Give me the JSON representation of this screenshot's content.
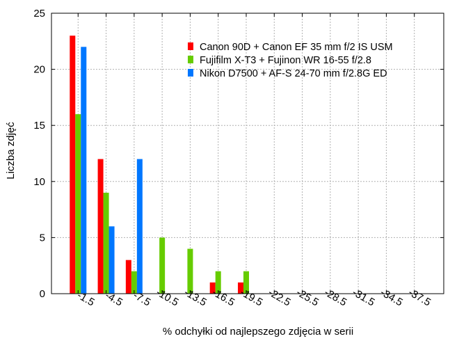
{
  "chart_data": {
    "type": "bar",
    "xlabel": "% odchyłki od najlepszego zdjęcia w serii",
    "ylabel": "Liczba zdjęć",
    "ylim": [
      0,
      25
    ],
    "yticks": [
      0,
      5,
      10,
      15,
      20,
      25
    ],
    "grid": true,
    "legend_position": "top-right",
    "categories": [
      "-1.5",
      "-4.5",
      "-7.5",
      "-10.5",
      "-13.5",
      "-16.5",
      "-19.5",
      "-22.5",
      "-25.5",
      "-28.5",
      "-31.5",
      "-34.5",
      "-37.5"
    ],
    "series": [
      {
        "name": "Canon 90D + Canon EF 35 mm f/2 IS USM",
        "color": "#ff0000",
        "values": [
          23,
          12,
          3,
          0,
          0,
          1,
          1,
          0,
          0,
          0,
          0,
          0,
          0
        ]
      },
      {
        "name": "Fujifilm X-T3 + Fujinon WR 16-55 f/2.8",
        "color": "#66cc00",
        "values": [
          16,
          9,
          2,
          5,
          4,
          2,
          2,
          0,
          0,
          0,
          0,
          0,
          0
        ]
      },
      {
        "name": "Nikon D7500 + AF-S 24-70 mm f/2.8G ED",
        "color": "#0077ff",
        "values": [
          22,
          6,
          12,
          0,
          0,
          0,
          0,
          0,
          0,
          0,
          0,
          0,
          0
        ]
      }
    ]
  }
}
